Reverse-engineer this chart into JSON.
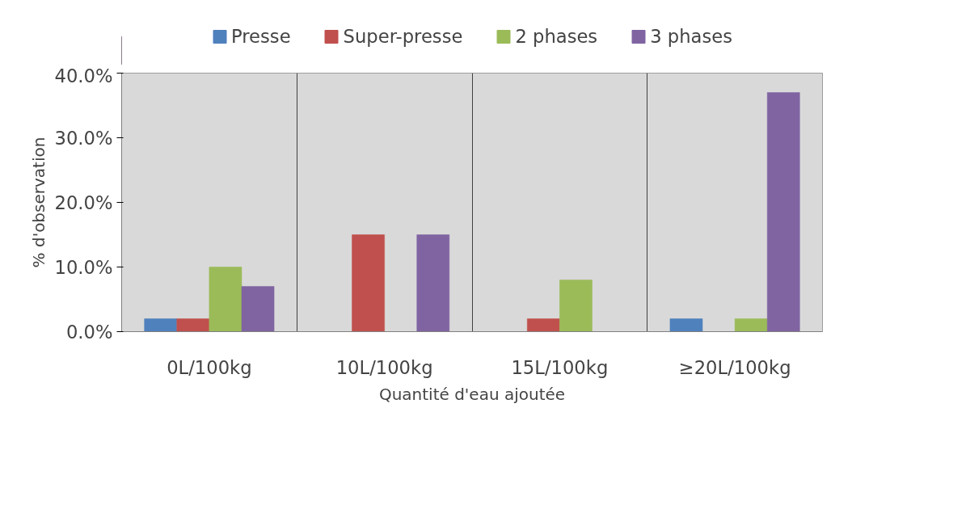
{
  "chart_data": {
    "type": "bar",
    "xlabel": "Quantité d'eau ajoutée",
    "ylabel": "% d'observation",
    "categories": [
      "0L/100kg",
      "10L/100kg",
      "15L/100kg",
      "≥20L/100kg"
    ],
    "series": [
      {
        "name": "Presse",
        "color": "#4f81bd",
        "values": [
          2,
          0,
          0,
          2
        ]
      },
      {
        "name": "Super-presse",
        "color": "#c0504d",
        "values": [
          2,
          15,
          2,
          0
        ]
      },
      {
        "name": "2 phases",
        "color": "#9bbb59",
        "values": [
          10,
          0,
          8,
          2
        ]
      },
      {
        "name": "3 phases",
        "color": "#8064a2",
        "values": [
          7,
          15,
          0,
          37
        ]
      }
    ],
    "ylim": [
      0,
      40
    ],
    "yticks": [
      {
        "value": 0,
        "label": "0.0%"
      },
      {
        "value": 10,
        "label": "10.0%"
      },
      {
        "value": 20,
        "label": "20.0%"
      },
      {
        "value": 30,
        "label": "30.0%"
      },
      {
        "value": 40,
        "label": "40.0%"
      }
    ],
    "grid": "x",
    "legend": "top"
  }
}
